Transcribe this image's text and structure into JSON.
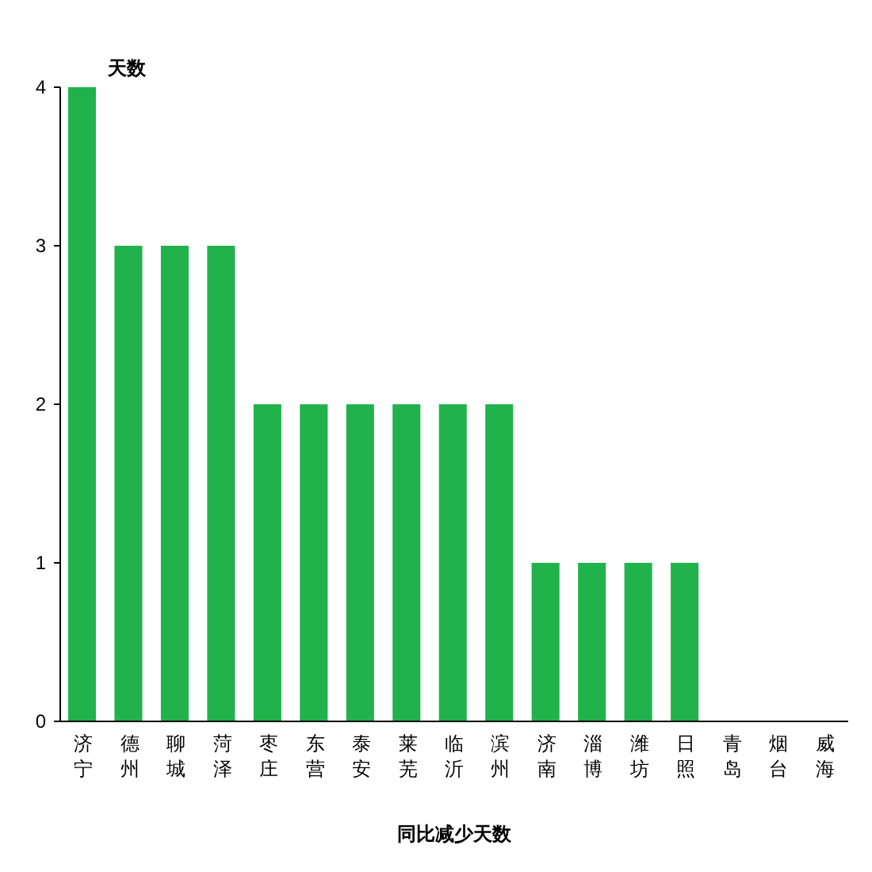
{
  "chart_data": {
    "type": "bar",
    "ylabel": "天数",
    "xlabel": "同比减少天数",
    "categories": [
      "济宁",
      "德州",
      "聊城",
      "菏泽",
      "枣庄",
      "东营",
      "泰安",
      "莱芜",
      "临沂",
      "滨州",
      "济南",
      "淄博",
      "潍坊",
      "日照",
      "青岛",
      "烟台",
      "威海"
    ],
    "values": [
      4,
      3,
      3,
      3,
      2,
      2,
      2,
      2,
      2,
      2,
      1,
      1,
      1,
      1,
      0,
      0,
      0
    ],
    "color": "#22b24c",
    "ylim": [
      0,
      4
    ],
    "yticks": [
      0,
      1,
      2,
      3,
      4
    ],
    "grid": false
  }
}
